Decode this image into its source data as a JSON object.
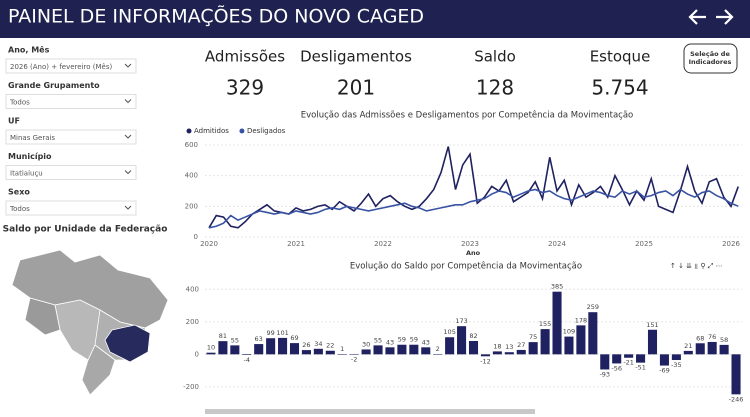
{
  "header": {
    "title": "PAINEL DE INFORMAÇÕES DO NOVO CAGED"
  },
  "filters": [
    {
      "label": "Ano, Mês",
      "value": "2026 (Ano) + fevereiro (Mês)"
    },
    {
      "label": "Grande Grupamento",
      "value": "Todos"
    },
    {
      "label": "UF",
      "value": "Minas Gerais"
    },
    {
      "label": "Município",
      "value": "Itatiaiuçu"
    },
    {
      "label": "Sexo",
      "value": "Todos"
    }
  ],
  "map": {
    "title": "Saldo por Unidade da Federação"
  },
  "kpis": [
    {
      "label": "Admissões",
      "value": "329"
    },
    {
      "label": "Desligamentos",
      "value": "201"
    },
    {
      "label": "Saldo",
      "value": "128"
    },
    {
      "label": "Estoque",
      "value": "5.754"
    }
  ],
  "button": {
    "label": "Seleção de Indicadores"
  },
  "chart_data": [
    {
      "type": "line",
      "title": "Evolução das Admissões e Desligamentos por Competência da Movimentação",
      "x_label": "Ano",
      "categories": [
        "2020",
        null,
        null,
        null,
        null,
        null,
        null,
        null,
        null,
        null,
        null,
        null,
        "2021",
        null,
        null,
        null,
        null,
        null,
        null,
        null,
        null,
        null,
        null,
        null,
        "2022",
        null,
        null,
        null,
        null,
        null,
        null,
        null,
        null,
        null,
        null,
        null,
        "2023",
        null,
        null,
        null,
        null,
        null,
        null,
        null,
        null,
        null,
        null,
        null,
        "2024",
        null,
        null,
        null,
        null,
        null,
        null,
        null,
        null,
        null,
        null,
        null,
        "2025",
        null,
        null,
        null,
        null,
        null,
        null,
        null,
        null,
        null,
        null,
        null,
        "2026",
        null
      ],
      "series": [
        {
          "name": "Admitidos",
          "color": "#1f2160",
          "values": [
            60,
            140,
            130,
            70,
            60,
            100,
            150,
            180,
            210,
            170,
            160,
            150,
            190,
            170,
            180,
            200,
            210,
            180,
            230,
            200,
            170,
            220,
            280,
            200,
            250,
            270,
            230,
            200,
            180,
            200,
            250,
            310,
            420,
            590,
            310,
            470,
            540,
            220,
            260,
            330,
            300,
            370,
            230,
            260,
            290,
            360,
            250,
            520,
            300,
            370,
            210,
            340,
            260,
            290,
            330,
            260,
            400,
            310,
            210,
            300,
            240,
            380,
            200,
            180,
            160,
            300,
            460,
            300,
            220,
            360,
            380,
            260,
            200,
            329
          ]
        },
        {
          "name": "Desligados",
          "color": "#3953a4",
          "values": [
            60,
            70,
            90,
            140,
            110,
            130,
            150,
            170,
            160,
            150,
            160,
            150,
            170,
            160,
            150,
            160,
            180,
            190,
            180,
            200,
            190,
            180,
            170,
            180,
            190,
            200,
            210,
            220,
            200,
            190,
            170,
            180,
            190,
            200,
            210,
            210,
            230,
            240,
            250,
            280,
            300,
            290,
            260,
            280,
            300,
            310,
            290,
            300,
            270,
            250,
            240,
            260,
            280,
            300,
            290,
            270,
            260,
            300,
            280,
            300,
            260,
            270,
            290,
            300,
            270,
            310,
            280,
            260,
            290,
            300,
            270,
            250,
            220,
            201
          ]
        }
      ],
      "ylim": [
        0,
        600
      ],
      "yticks": [
        0,
        200,
        400,
        600
      ],
      "legend": "top-left"
    },
    {
      "type": "bar",
      "title": "Evolução do Saldo por Competência da Movimentação",
      "color": "#1f2160",
      "categories": [
        null,
        null,
        null,
        null,
        null,
        null,
        null,
        null,
        null,
        null,
        null,
        null,
        null,
        null,
        null,
        null,
        null,
        null,
        null,
        null,
        null,
        null,
        null,
        null,
        null,
        null,
        null,
        null,
        null,
        null,
        null,
        null,
        null,
        null,
        null,
        null,
        null,
        null,
        null,
        null,
        null,
        null,
        null,
        null,
        null
      ],
      "values": [
        10,
        81,
        55,
        -4,
        63,
        99,
        101,
        69,
        26,
        34,
        22,
        1,
        -2,
        30,
        55,
        43,
        59,
        59,
        43,
        2,
        105,
        173,
        82,
        -12,
        18,
        13,
        27,
        75,
        155,
        385,
        109,
        178,
        259,
        -93,
        -56,
        -21,
        -51,
        151,
        -69,
        -35,
        21,
        68,
        76,
        58,
        -246
      ],
      "ylim": [
        -250,
        420
      ],
      "yticks": [
        -200,
        0,
        200,
        400
      ]
    }
  ]
}
